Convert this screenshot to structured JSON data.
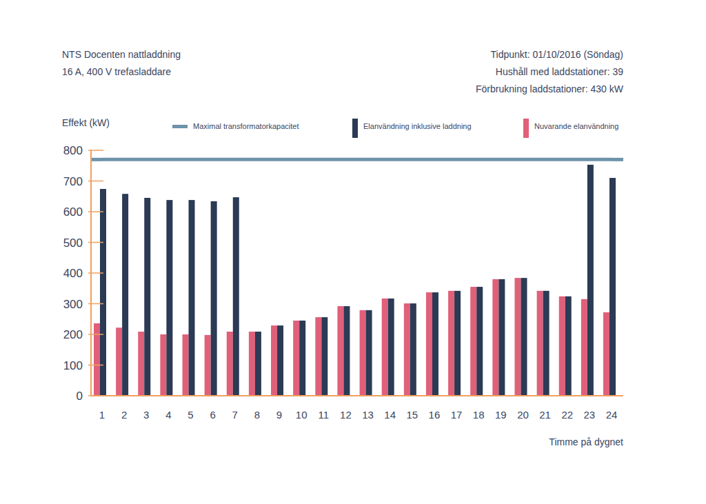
{
  "chart_data": {
    "type": "bar",
    "title": "NTS Docenten nattladdning",
    "subtitle": "16 A, 400 V trefasladdare",
    "annotations": [
      "Tidpunkt: 01/10/2016 (Söndag)",
      "Hushåll med laddstationer:  39",
      "Förbrukning laddstationer: 430 kW"
    ],
    "y_label": "Effekt (kW)",
    "x_label": "Timme på dygnet",
    "categories": [
      "1",
      "2",
      "3",
      "4",
      "5",
      "6",
      "7",
      "8",
      "9",
      "10",
      "11",
      "12",
      "13",
      "14",
      "15",
      "16",
      "17",
      "18",
      "19",
      "20",
      "21",
      "22",
      "23",
      "24"
    ],
    "series": [
      {
        "name": "Maximal transformatorkapacitet",
        "type": "line",
        "color": "#6e93ab",
        "values": [
          770,
          770,
          770,
          770,
          770,
          770,
          770,
          770,
          770,
          770,
          770,
          770,
          770,
          770,
          770,
          770,
          770,
          770,
          770,
          770,
          770,
          770,
          770,
          770
        ]
      },
      {
        "name": "Elanvändning inklusive laddning",
        "type": "bar",
        "color": "#2b3a55",
        "values": [
          674,
          658,
          645,
          638,
          638,
          634,
          647,
          209,
          229,
          245,
          256,
          292,
          279,
          317,
          301,
          337,
          342,
          355,
          380,
          384,
          342,
          324,
          753,
          710
        ]
      },
      {
        "name": "Nuvarande elanvändning",
        "type": "bar",
        "color": "#e0607a",
        "values": [
          236,
          222,
          209,
          200,
          200,
          198,
          209,
          209,
          229,
          245,
          256,
          292,
          279,
          317,
          301,
          337,
          342,
          355,
          380,
          384,
          342,
          324,
          315,
          272
        ]
      }
    ],
    "ylim": [
      0,
      800
    ],
    "yticks": [
      0,
      100,
      200,
      300,
      400,
      500,
      600,
      700,
      800
    ],
    "grid": false
  }
}
